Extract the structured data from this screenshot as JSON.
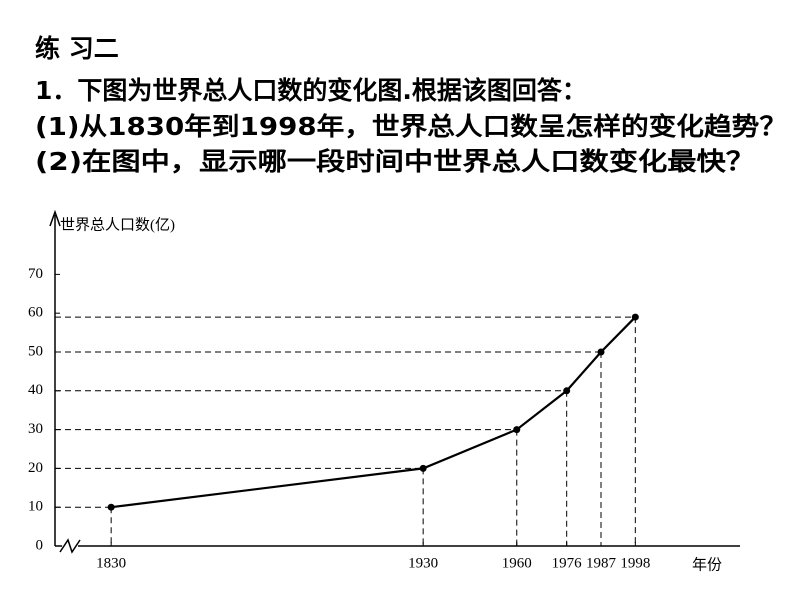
{
  "heading": "练 习二",
  "question": "1．下图为世界总人口数的变化图.根据该图回答：",
  "sub_questions": [
    "(1)从1830年到1998年，世界总人口数呈怎样的变化趋势？",
    "(2)在图中，显示哪一段时间中世界总人口数变化最快？"
  ],
  "chart_data": {
    "type": "line",
    "y_label": "世界总人口数(亿)",
    "x_label": "年份",
    "x": [
      1830,
      1930,
      1960,
      1976,
      1987,
      1998
    ],
    "values": [
      10,
      20,
      30,
      40,
      50,
      59
    ],
    "color": "#000000",
    "xlim": [
      1812,
      2032
    ],
    "xticks": [
      1830,
      1930,
      1960,
      1976,
      1987,
      1998
    ],
    "ylim": [
      0,
      86
    ],
    "yticks": [
      0,
      10,
      20,
      30,
      40,
      50,
      60,
      70
    ],
    "guides": true
  }
}
